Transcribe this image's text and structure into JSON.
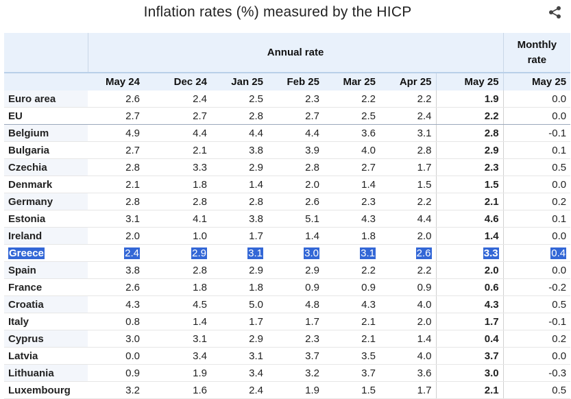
{
  "title": "Inflation rates (%) measured by the HICP",
  "share_icon": "share-icon",
  "header": {
    "annual_label": "Annual rate",
    "monthly_label_1": "Monthly",
    "monthly_label_2": "rate",
    "columns": [
      "May 24",
      "Dec 24",
      "Jan 25",
      "Feb 25",
      "Mar 25",
      "Apr 25",
      "May 25",
      "May 25"
    ]
  },
  "selection_color": "#3367d6",
  "rows": [
    {
      "country": "Euro area",
      "values": [
        "2.6",
        "2.4",
        "2.5",
        "2.3",
        "2.2",
        "2.2",
        "1.9",
        "0.0"
      ]
    },
    {
      "country": "EU",
      "values": [
        "2.7",
        "2.7",
        "2.8",
        "2.7",
        "2.5",
        "2.4",
        "2.2",
        "0.0"
      ]
    },
    {
      "country": "Belgium",
      "values": [
        "4.9",
        "4.4",
        "4.4",
        "4.4",
        "3.6",
        "3.1",
        "2.8",
        "-0.1"
      ]
    },
    {
      "country": "Bulgaria",
      "values": [
        "2.7",
        "2.1",
        "3.8",
        "3.9",
        "4.0",
        "2.8",
        "2.9",
        "0.1"
      ]
    },
    {
      "country": "Czechia",
      "values": [
        "2.8",
        "3.3",
        "2.9",
        "2.8",
        "2.7",
        "1.7",
        "2.3",
        "0.5"
      ]
    },
    {
      "country": "Denmark",
      "values": [
        "2.1",
        "1.8",
        "1.4",
        "2.0",
        "1.4",
        "1.5",
        "1.5",
        "0.0"
      ]
    },
    {
      "country": "Germany",
      "values": [
        "2.8",
        "2.8",
        "2.8",
        "2.6",
        "2.3",
        "2.2",
        "2.1",
        "0.2"
      ]
    },
    {
      "country": "Estonia",
      "values": [
        "3.1",
        "4.1",
        "3.8",
        "5.1",
        "4.3",
        "4.4",
        "4.6",
        "0.1"
      ]
    },
    {
      "country": "Ireland",
      "values": [
        "2.0",
        "1.0",
        "1.7",
        "1.4",
        "1.8",
        "2.0",
        "1.4",
        "0.0"
      ]
    },
    {
      "country": "Greece",
      "values": [
        "2.4",
        "2.9",
        "3.1",
        "3.0",
        "3.1",
        "2.6",
        "3.3",
        "0.4"
      ],
      "selected": true
    },
    {
      "country": "Spain",
      "values": [
        "3.8",
        "2.8",
        "2.9",
        "2.9",
        "2.2",
        "2.2",
        "2.0",
        "0.0"
      ]
    },
    {
      "country": "France",
      "values": [
        "2.6",
        "1.8",
        "1.8",
        "0.9",
        "0.9",
        "0.9",
        "0.6",
        "-0.2"
      ]
    },
    {
      "country": "Croatia",
      "values": [
        "4.3",
        "4.5",
        "5.0",
        "4.8",
        "4.3",
        "4.0",
        "4.3",
        "0.5"
      ]
    },
    {
      "country": "Italy",
      "values": [
        "0.8",
        "1.4",
        "1.7",
        "1.7",
        "2.1",
        "2.0",
        "1.7",
        "-0.1"
      ]
    },
    {
      "country": "Cyprus",
      "values": [
        "3.0",
        "3.1",
        "2.9",
        "2.3",
        "2.1",
        "1.4",
        "0.4",
        "0.2"
      ]
    },
    {
      "country": "Latvia",
      "values": [
        "0.0",
        "3.4",
        "3.1",
        "3.7",
        "3.5",
        "4.0",
        "3.7",
        "0.0"
      ]
    },
    {
      "country": "Lithuania",
      "values": [
        "0.9",
        "1.9",
        "3.4",
        "3.2",
        "3.7",
        "3.6",
        "3.0",
        "-0.3"
      ]
    },
    {
      "country": "Luxembourg",
      "values": [
        "3.2",
        "1.6",
        "2.4",
        "1.9",
        "1.5",
        "1.7",
        "2.1",
        "0.5"
      ]
    }
  ]
}
